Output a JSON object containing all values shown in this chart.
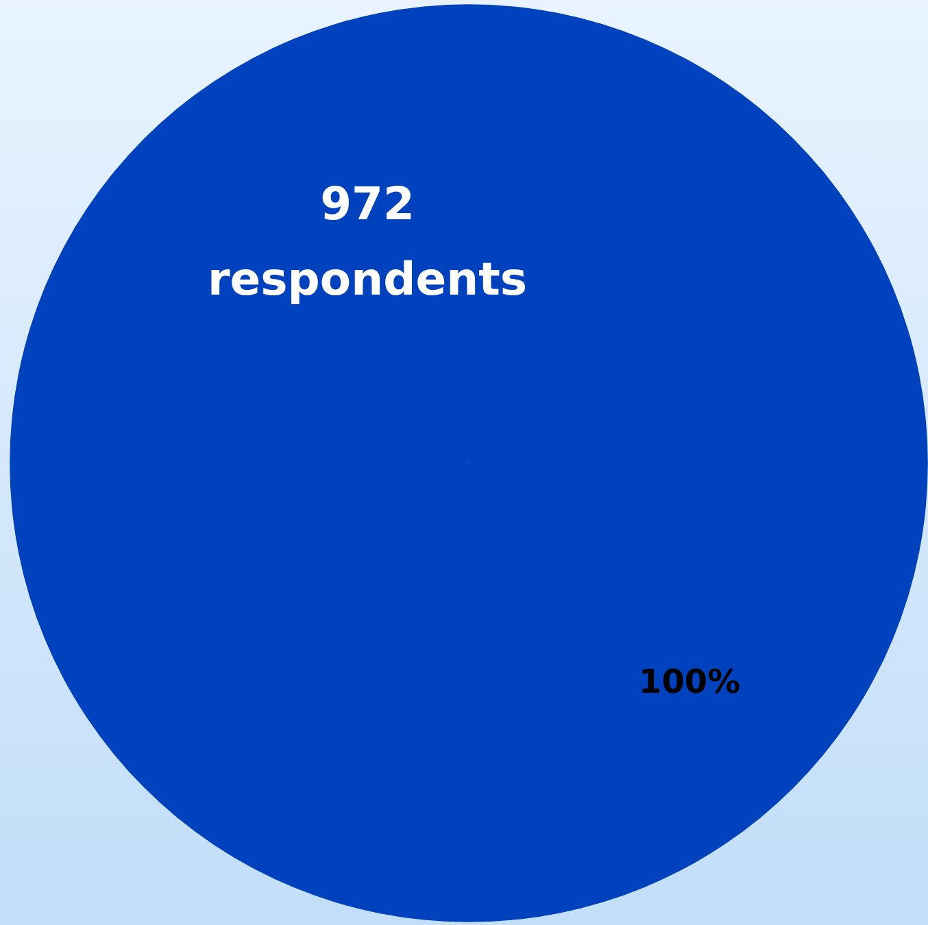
{
  "chart_data": {
    "type": "pie",
    "categories": [
      null
    ],
    "values": [
      100
    ],
    "colors": [
      "#0041be"
    ],
    "value_labels": [
      "100%"
    ],
    "annotations": [
      "972 respondents"
    ]
  }
}
